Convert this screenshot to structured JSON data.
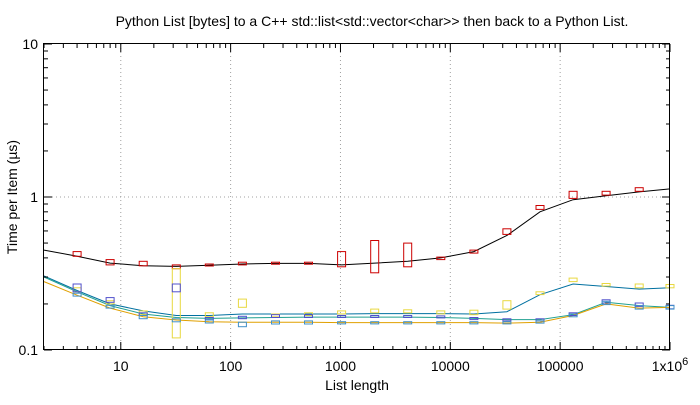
{
  "chart_data": {
    "type": "line",
    "title": "Python List [bytes] to a C++ std::list<std::vector<char>> then back to a Python List.",
    "xlabel": "List length",
    "ylabel": "Time per Item (µs)",
    "x_scale": "log",
    "y_scale": "log",
    "xlim": [
      2,
      1000000
    ],
    "ylim": [
      0.1,
      10
    ],
    "grid": true,
    "x_ticks": [
      {
        "value": 10,
        "label": "10"
      },
      {
        "value": 100,
        "label": "100"
      },
      {
        "value": 1000,
        "label": "1000"
      },
      {
        "value": 10000,
        "label": "10000"
      },
      {
        "value": 100000,
        "label": "100000"
      },
      {
        "value": 1000000,
        "label": "1x10^6"
      }
    ],
    "y_ticks": [
      {
        "value": 0.1,
        "label": "0.1"
      },
      {
        "value": 1,
        "label": "1"
      },
      {
        "value": 10,
        "label": "10"
      }
    ],
    "series": [
      {
        "color": "#000000",
        "box_color": "#cc0000",
        "x": [
          2,
          4,
          8,
          16,
          32,
          64,
          128,
          256,
          512,
          1024,
          2048,
          4096,
          8192,
          16384,
          32768,
          65536,
          131072,
          262144,
          524288,
          1000000
        ],
        "y": [
          0.45,
          0.41,
          0.37,
          0.355,
          0.352,
          0.358,
          0.365,
          0.368,
          0.368,
          0.36,
          0.37,
          0.38,
          0.4,
          0.44,
          0.56,
          0.8,
          0.96,
          1.02,
          1.08,
          1.13
        ],
        "boxes": [
          {
            "x": 4,
            "low": 0.41,
            "high": 0.44
          },
          {
            "x": 8,
            "low": 0.36,
            "high": 0.39
          },
          {
            "x": 16,
            "low": 0.355,
            "high": 0.38
          },
          {
            "x": 32,
            "low": 0.34,
            "high": 0.36
          },
          {
            "x": 64,
            "low": 0.355,
            "high": 0.365
          },
          {
            "x": 128,
            "low": 0.36,
            "high": 0.375
          },
          {
            "x": 256,
            "low": 0.365,
            "high": 0.375
          },
          {
            "x": 512,
            "low": 0.365,
            "high": 0.375
          },
          {
            "x": 1024,
            "low": 0.35,
            "high": 0.44
          },
          {
            "x": 2048,
            "low": 0.32,
            "high": 0.52
          },
          {
            "x": 4096,
            "low": 0.35,
            "high": 0.5
          },
          {
            "x": 8192,
            "low": 0.39,
            "high": 0.405
          },
          {
            "x": 16384,
            "low": 0.43,
            "high": 0.45
          },
          {
            "x": 32768,
            "low": 0.57,
            "high": 0.62
          },
          {
            "x": 65536,
            "low": 0.83,
            "high": 0.88
          },
          {
            "x": 131072,
            "low": 0.98,
            "high": 1.09
          },
          {
            "x": 262144,
            "low": 1.03,
            "high": 1.09
          },
          {
            "x": 524288,
            "low": 1.09,
            "high": 1.15
          }
        ]
      },
      {
        "color": "#0070a0",
        "box_color": "#e8d840",
        "x": [
          2,
          4,
          8,
          16,
          32,
          64,
          128,
          256,
          512,
          1024,
          2048,
          4096,
          8192,
          16384,
          32768,
          65536,
          131072,
          262144,
          524288,
          1000000
        ],
        "y": [
          0.305,
          0.245,
          0.2,
          0.18,
          0.168,
          0.168,
          0.172,
          0.172,
          0.172,
          0.172,
          0.173,
          0.173,
          0.173,
          0.172,
          0.178,
          0.23,
          0.27,
          0.26,
          0.25,
          0.255
        ],
        "boxes": [
          {
            "x": 4,
            "low": 0.24,
            "high": 0.255
          },
          {
            "x": 8,
            "low": 0.2,
            "high": 0.21
          },
          {
            "x": 16,
            "low": 0.17,
            "high": 0.18
          },
          {
            "x": 32,
            "low": 0.12,
            "high": 0.34
          },
          {
            "x": 64,
            "low": 0.165,
            "high": 0.175
          },
          {
            "x": 128,
            "low": 0.19,
            "high": 0.215
          },
          {
            "x": 256,
            "low": 0.165,
            "high": 0.172
          },
          {
            "x": 512,
            "low": 0.168,
            "high": 0.175
          },
          {
            "x": 1024,
            "low": 0.172,
            "high": 0.18
          },
          {
            "x": 2048,
            "low": 0.175,
            "high": 0.185
          },
          {
            "x": 4096,
            "low": 0.175,
            "high": 0.183
          },
          {
            "x": 8192,
            "low": 0.172,
            "high": 0.18
          },
          {
            "x": 16384,
            "low": 0.17,
            "high": 0.182
          },
          {
            "x": 32768,
            "low": 0.185,
            "high": 0.21
          },
          {
            "x": 65536,
            "low": 0.23,
            "high": 0.24
          },
          {
            "x": 131072,
            "low": 0.28,
            "high": 0.295
          },
          {
            "x": 262144,
            "low": 0.262,
            "high": 0.272
          },
          {
            "x": 524288,
            "low": 0.255,
            "high": 0.27
          },
          {
            "x": 1000000,
            "low": 0.255,
            "high": 0.268
          }
        ]
      },
      {
        "color": "#20a090",
        "box_color": "#5050cc",
        "x": [
          2,
          4,
          8,
          16,
          32,
          64,
          128,
          256,
          512,
          1024,
          2048,
          4096,
          8192,
          16384,
          32768,
          65536,
          131072,
          262144,
          524288,
          1000000
        ],
        "y": [
          0.3,
          0.24,
          0.195,
          0.172,
          0.163,
          0.161,
          0.162,
          0.163,
          0.164,
          0.164,
          0.164,
          0.164,
          0.163,
          0.161,
          0.158,
          0.158,
          0.17,
          0.205,
          0.195,
          0.19
        ],
        "boxes": [
          {
            "x": 4,
            "low": 0.24,
            "high": 0.27
          },
          {
            "x": 8,
            "low": 0.205,
            "high": 0.22
          },
          {
            "x": 16,
            "low": 0.168,
            "high": 0.175
          },
          {
            "x": 32,
            "low": 0.24,
            "high": 0.27
          },
          {
            "x": 64,
            "low": 0.158,
            "high": 0.163
          },
          {
            "x": 128,
            "low": 0.16,
            "high": 0.166
          },
          {
            "x": 256,
            "low": 0.163,
            "high": 0.17
          },
          {
            "x": 512,
            "low": 0.163,
            "high": 0.17
          },
          {
            "x": 1024,
            "low": 0.163,
            "high": 0.168
          },
          {
            "x": 2048,
            "low": 0.163,
            "high": 0.168
          },
          {
            "x": 4096,
            "low": 0.163,
            "high": 0.168
          },
          {
            "x": 8192,
            "low": 0.162,
            "high": 0.167
          },
          {
            "x": 16384,
            "low": 0.158,
            "high": 0.163
          },
          {
            "x": 32768,
            "low": 0.155,
            "high": 0.16
          },
          {
            "x": 65536,
            "low": 0.155,
            "high": 0.16
          },
          {
            "x": 131072,
            "low": 0.168,
            "high": 0.175
          },
          {
            "x": 262144,
            "low": 0.203,
            "high": 0.213
          },
          {
            "x": 524288,
            "low": 0.193,
            "high": 0.203
          },
          {
            "x": 1000000,
            "low": 0.186,
            "high": 0.196
          }
        ]
      },
      {
        "color": "#e0a000",
        "box_color": "#4090c8",
        "x": [
          2,
          4,
          8,
          16,
          32,
          64,
          128,
          256,
          512,
          1024,
          2048,
          4096,
          8192,
          16384,
          32768,
          65536,
          131072,
          262144,
          524288,
          1000000
        ],
        "y": [
          0.28,
          0.228,
          0.188,
          0.165,
          0.157,
          0.153,
          0.152,
          0.152,
          0.152,
          0.151,
          0.151,
          0.151,
          0.151,
          0.151,
          0.15,
          0.152,
          0.168,
          0.2,
          0.188,
          0.19
        ],
        "boxes": [
          {
            "x": 4,
            "low": 0.225,
            "high": 0.235
          },
          {
            "x": 8,
            "low": 0.188,
            "high": 0.196
          },
          {
            "x": 16,
            "low": 0.16,
            "high": 0.168
          },
          {
            "x": 32,
            "low": 0.153,
            "high": 0.16
          },
          {
            "x": 64,
            "low": 0.15,
            "high": 0.157
          },
          {
            "x": 128,
            "low": 0.142,
            "high": 0.152
          },
          {
            "x": 256,
            "low": 0.148,
            "high": 0.155
          },
          {
            "x": 512,
            "low": 0.148,
            "high": 0.155
          },
          {
            "x": 1024,
            "low": 0.148,
            "high": 0.153
          },
          {
            "x": 2048,
            "low": 0.148,
            "high": 0.153
          },
          {
            "x": 4096,
            "low": 0.148,
            "high": 0.153
          },
          {
            "x": 8192,
            "low": 0.148,
            "high": 0.153
          },
          {
            "x": 16384,
            "low": 0.148,
            "high": 0.153
          },
          {
            "x": 32768,
            "low": 0.148,
            "high": 0.153
          },
          {
            "x": 65536,
            "low": 0.15,
            "high": 0.155
          },
          {
            "x": 131072,
            "low": 0.165,
            "high": 0.172
          },
          {
            "x": 262144,
            "low": 0.198,
            "high": 0.208
          },
          {
            "x": 524288,
            "low": 0.185,
            "high": 0.195
          },
          {
            "x": 1000000,
            "low": 0.185,
            "high": 0.195
          }
        ]
      }
    ]
  }
}
